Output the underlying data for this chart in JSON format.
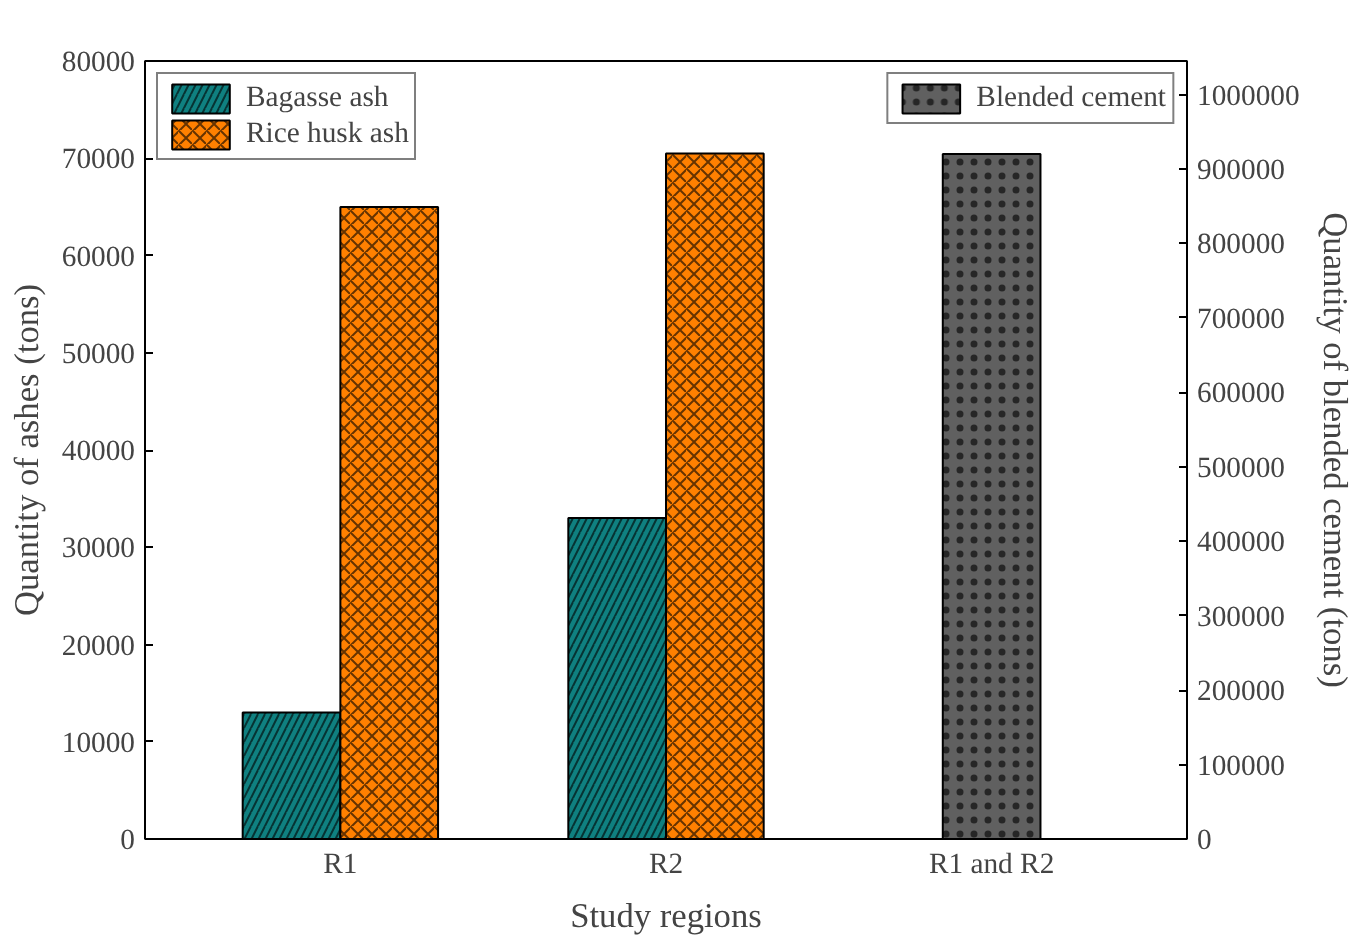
{
  "chart_data": {
    "type": "bar",
    "xlabel": "Study regions",
    "ylabel": "Quantity of ashes (tons)",
    "y2label": "Quantity of blended cement (tons)",
    "categories": [
      "R1",
      "R2",
      "R1 and R2"
    ],
    "series": [
      {
        "name": "Bagasse ash",
        "color": "#0f8080",
        "values": [
          13000,
          33000,
          null
        ]
      },
      {
        "name": "Rice husk ash",
        "color": "#ff8000",
        "values": [
          65000,
          70500,
          null
        ]
      },
      {
        "name": "Blended cement",
        "color": "#606060",
        "values": [
          null,
          null,
          920000
        ],
        "axis": "y2"
      }
    ],
    "ylim": [
      0,
      80000
    ],
    "yticks": [
      0,
      10000,
      20000,
      30000,
      40000,
      50000,
      60000,
      70000,
      80000
    ],
    "y2lim": [
      0,
      1045000
    ],
    "y2ticks": [
      0,
      100000,
      200000,
      300000,
      400000,
      500000,
      600000,
      700000,
      800000,
      900000,
      1000000
    ],
    "grid": false,
    "legend": "top left"
  }
}
